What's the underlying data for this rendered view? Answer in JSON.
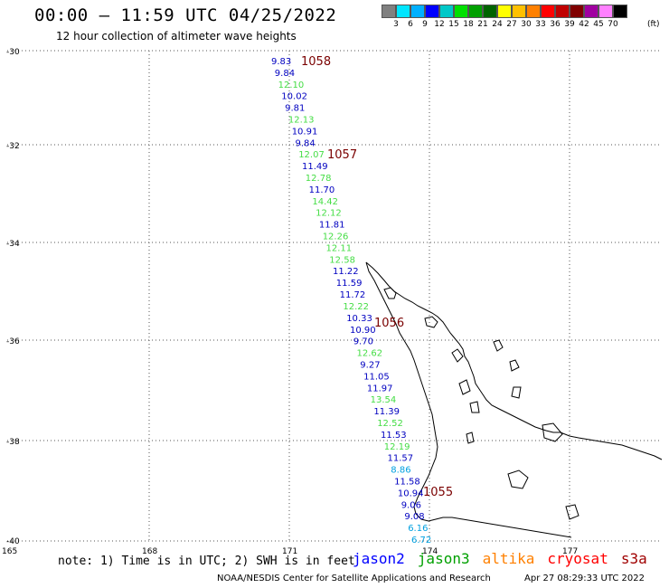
{
  "header": {
    "title": "00:00 – 11:59 UTC 04/25/2022",
    "subtitle": "12 hour collection of altimeter wave heights"
  },
  "colorbar": {
    "colors": [
      "#808080",
      "#00e5ff",
      "#00b0ff",
      "#0000ff",
      "#00c8c8",
      "#00e000",
      "#00a000",
      "#006400",
      "#ffff00",
      "#ffc000",
      "#ff8000",
      "#ff0000",
      "#c00000",
      "#800000",
      "#a000a0",
      "#ff80ff",
      "#000000"
    ],
    "labels": [
      "3",
      "6",
      "9",
      "12",
      "15",
      "18",
      "21",
      "24",
      "27",
      "30",
      "33",
      "36",
      "39",
      "42",
      "45",
      "70"
    ],
    "unit": "(ft)"
  },
  "map": {
    "lat_labels": [
      "-30",
      "-32",
      "-34",
      "-36",
      "-38",
      "-40"
    ],
    "lon_labels": [
      "165",
      "168",
      "171",
      "174",
      "177"
    ]
  },
  "passes": [
    {
      "id": "1058",
      "value": "1058"
    },
    {
      "id": "1057",
      "value": "1057"
    },
    {
      "id": "1056",
      "value": "1056"
    },
    {
      "id": "1055",
      "value": "1055"
    }
  ],
  "waves": [
    {
      "v": "9.83",
      "c": "#0000c0"
    },
    {
      "v": "9.84",
      "c": "#0000c0"
    },
    {
      "v": "12.10",
      "c": "#44dd44"
    },
    {
      "v": "10.02",
      "c": "#0000c0"
    },
    {
      "v": "9.81",
      "c": "#0000c0"
    },
    {
      "v": "12.13",
      "c": "#44dd44"
    },
    {
      "v": "10.91",
      "c": "#0000c0"
    },
    {
      "v": "9.84",
      "c": "#0000c0"
    },
    {
      "v": "12.07",
      "c": "#44dd44"
    },
    {
      "v": "11.49",
      "c": "#0000c0"
    },
    {
      "v": "12.78",
      "c": "#44dd44"
    },
    {
      "v": "11.70",
      "c": "#0000c0"
    },
    {
      "v": "14.42",
      "c": "#44dd44"
    },
    {
      "v": "12.12",
      "c": "#44dd44"
    },
    {
      "v": "11.81",
      "c": "#0000c0"
    },
    {
      "v": "12.26",
      "c": "#44dd44"
    },
    {
      "v": "12.11",
      "c": "#44dd44"
    },
    {
      "v": "12.58",
      "c": "#44dd44"
    },
    {
      "v": "11.22",
      "c": "#0000c0"
    },
    {
      "v": "11.59",
      "c": "#0000c0"
    },
    {
      "v": "11.72",
      "c": "#0000c0"
    },
    {
      "v": "12.22",
      "c": "#44dd44"
    },
    {
      "v": "10.33",
      "c": "#0000c0"
    },
    {
      "v": "10.90",
      "c": "#0000c0"
    },
    {
      "v": "9.70",
      "c": "#0000c0"
    },
    {
      "v": "12.62",
      "c": "#44dd44"
    },
    {
      "v": "9.27",
      "c": "#0000c0"
    },
    {
      "v": "11.05",
      "c": "#0000c0"
    },
    {
      "v": "11.97",
      "c": "#0000c0"
    },
    {
      "v": "13.54",
      "c": "#44dd44"
    },
    {
      "v": "11.39",
      "c": "#0000c0"
    },
    {
      "v": "12.52",
      "c": "#44dd44"
    },
    {
      "v": "11.53",
      "c": "#0000c0"
    },
    {
      "v": "12.19",
      "c": "#44dd44"
    },
    {
      "v": "11.57",
      "c": "#0000c0"
    },
    {
      "v": "8.86",
      "c": "#00a0e0"
    },
    {
      "v": "11.58",
      "c": "#0000c0"
    },
    {
      "v": "10.94",
      "c": "#0000c0"
    },
    {
      "v": "9.06",
      "c": "#0000c0"
    },
    {
      "v": "9.08",
      "c": "#0000c0"
    },
    {
      "v": "6.16",
      "c": "#00a0e0"
    },
    {
      "v": "6.72",
      "c": "#00a0e0"
    }
  ],
  "footer": {
    "note": "note: 1) Time is in UTC; 2) SWH is in feet",
    "satellites": [
      {
        "name": "jason2",
        "color": "#0000ff"
      },
      {
        "name": "jason3",
        "color": "#00a000"
      },
      {
        "name": "altika",
        "color": "#ff8000"
      },
      {
        "name": "cryosat",
        "color": "#ff0000"
      },
      {
        "name": "s3a",
        "color": "#a00000"
      }
    ],
    "credit": "NOAA/NESDIS Center for Satellite Applications and Research",
    "timestamp": "Apr 27 08:29:33 UTC 2022"
  }
}
